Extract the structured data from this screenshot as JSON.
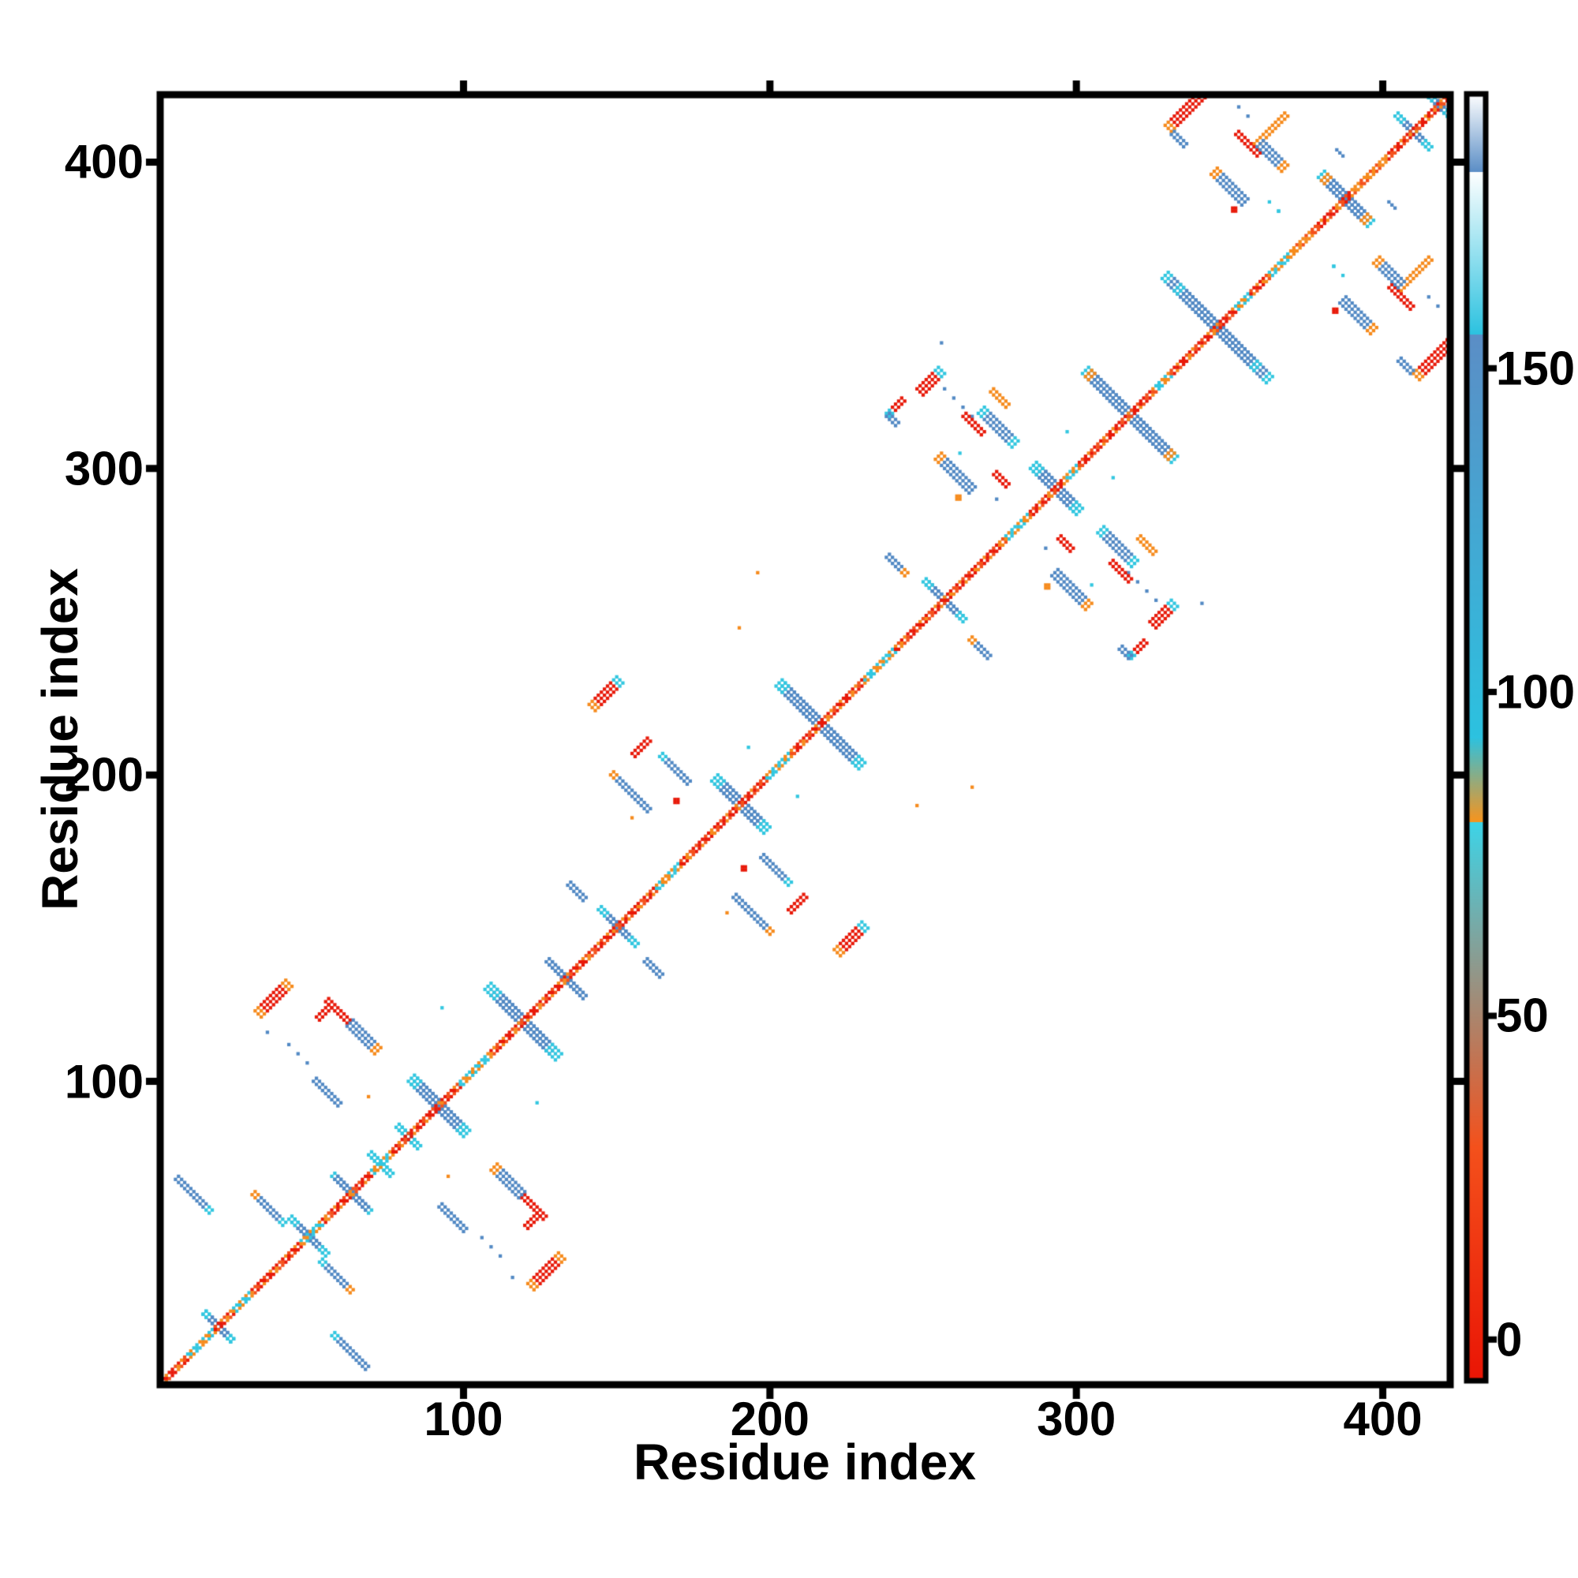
{
  "chart_data": {
    "type": "heatmap",
    "subtype": "protein-residue-contact-map",
    "title": "",
    "xlabel": "Residue index",
    "ylabel": "Residue index",
    "x_range": [
      1,
      422
    ],
    "y_range": [
      1,
      422
    ],
    "x_ticks": [
      100,
      200,
      300,
      400
    ],
    "y_ticks": [
      100,
      200,
      300,
      400
    ],
    "grid": false,
    "symmetric": true,
    "background": "#ffffff",
    "frame_color": "#000000",
    "colors": {
      "red": "#e81a0a",
      "redorange": "#f4511c",
      "orange": "#f68b1d",
      "cyan": "#32c7e0",
      "blue": "#5289c4",
      "white": "#ffffff"
    },
    "colorbar": {
      "ticks": [
        0,
        50,
        100,
        150
      ],
      "tick_labels": [
        "0",
        "50",
        "100",
        "150"
      ],
      "range": [
        -6,
        192
      ],
      "stops": [
        {
          "v": -6,
          "c": "#ea1505"
        },
        {
          "v": 30,
          "c": "#f4511c"
        },
        {
          "v": 80,
          "c": "#f7941e"
        },
        {
          "v": 80,
          "c": "#3dd4e8"
        },
        {
          "v": 93,
          "c": "#2cc2e0"
        },
        {
          "v": 155,
          "c": "#2cc2e0"
        },
        {
          "v": 155,
          "c": "#5b8ec6"
        },
        {
          "v": 180,
          "c": "#5b8ec6"
        },
        {
          "v": 180,
          "c": "#ffffff"
        },
        {
          "v": 192,
          "c": "#ffffff"
        }
      ]
    },
    "diagonal": {
      "start": 1,
      "end": 422,
      "width_residues": 3,
      "cyan_segments": [
        [
          10,
          18
        ],
        [
          25,
          30
        ],
        [
          47,
          53
        ],
        [
          70,
          76
        ],
        [
          99,
          108
        ],
        [
          163,
          170
        ],
        [
          199,
          206
        ],
        [
          231,
          240
        ],
        [
          277,
          284
        ],
        [
          296,
          300
        ],
        [
          326,
          330
        ],
        [
          352,
          356
        ],
        [
          363,
          370
        ]
      ],
      "orange_segments": [
        [
          370,
          377
        ],
        [
          390,
          400
        ]
      ]
    },
    "features": [
      {
        "t": "a",
        "i": 15,
        "j": 24,
        "len": 10,
        "w": 2,
        "c": "blue",
        "tips": "cyan"
      },
      {
        "t": "a",
        "i": 43,
        "j": 55,
        "len": 12,
        "w": 2,
        "c": "blue",
        "tips": "cyan"
      },
      {
        "t": "a",
        "i": 57,
        "j": 69,
        "len": 12,
        "w": 2,
        "c": "blue",
        "tip_start": "cyan"
      },
      {
        "t": "a",
        "i": 69,
        "j": 76,
        "len": 7,
        "w": 2,
        "c": "cyan"
      },
      {
        "t": "a",
        "i": 78,
        "j": 85,
        "len": 7,
        "w": 2,
        "c": "cyan"
      },
      {
        "t": "a",
        "i": 83,
        "j": 101,
        "len": 18,
        "w": 3,
        "c": "blue",
        "tips": "cyan"
      },
      {
        "t": "a",
        "i": 108,
        "j": 131,
        "len": 22,
        "w": 3,
        "c": "blue",
        "tips": "cyan"
      },
      {
        "t": "a",
        "i": 6,
        "j": 68,
        "len": 12,
        "w": 2,
        "c": "blue",
        "tip_end": "cyan"
      },
      {
        "t": "a",
        "i": 31,
        "j": 63,
        "len": 11,
        "w": 2,
        "c": "blue",
        "tip_start": "orange",
        "tip_end": "cyan"
      },
      {
        "t": "p",
        "i": 33,
        "j": 122,
        "len": 11,
        "w": 3,
        "c": "red",
        "tip_start": "orange",
        "tip_end": "orange"
      },
      {
        "t": "p",
        "i": 52,
        "j": 121,
        "len": 5,
        "w": 2,
        "c": "red"
      },
      {
        "t": "a",
        "i": 55,
        "j": 126,
        "len": 8,
        "w": 2,
        "c": "red"
      },
      {
        "t": "a",
        "i": 63,
        "j": 119,
        "len": 10,
        "w": 3,
        "c": "blue",
        "tip_end": "orange"
      },
      {
        "t": "a",
        "i": 51,
        "j": 100,
        "len": 9,
        "w": 2,
        "c": "blue"
      },
      {
        "t": "da",
        "i": 43,
        "j": 112,
        "len": 9,
        "w": 1,
        "c": "blue"
      },
      {
        "t": "d",
        "i": 36,
        "j": 116,
        "c": "blue"
      },
      {
        "t": "d",
        "i": 93,
        "j": 124,
        "c": "cyan"
      },
      {
        "t": "d",
        "i": 69,
        "j": 95,
        "c": "orange"
      },
      {
        "t": "a",
        "i": 127,
        "j": 139,
        "len": 12,
        "w": 2,
        "c": "blue"
      },
      {
        "t": "a",
        "i": 134,
        "j": 164,
        "len": 6,
        "w": 2,
        "c": "blue"
      },
      {
        "t": "a",
        "i": 144,
        "j": 156,
        "len": 12,
        "w": 2,
        "c": "blue",
        "tips": "cyan"
      },
      {
        "t": "a",
        "i": 182,
        "j": 199,
        "len": 17,
        "w": 3,
        "c": "blue",
        "tips": "cyan"
      },
      {
        "t": "a",
        "i": 203,
        "j": 230,
        "len": 27,
        "w": 3,
        "c": "blue",
        "tips": "cyan"
      },
      {
        "t": "p",
        "i": 142,
        "j": 222,
        "len": 10,
        "w": 3,
        "c": "red",
        "tip_start": "orange",
        "tip_end": "cyan"
      },
      {
        "t": "p",
        "i": 155,
        "j": 207,
        "len": 6,
        "w": 2,
        "c": "red"
      },
      {
        "t": "a",
        "i": 164,
        "j": 206,
        "len": 10,
        "w": 2,
        "c": "blue",
        "tip_start": "cyan"
      },
      {
        "t": "a",
        "i": 148,
        "j": 200,
        "len": 13,
        "w": 2,
        "c": "blue",
        "tip_start": "orange"
      },
      {
        "t": "d",
        "i": 169,
        "j": 191,
        "c": "red",
        "big": true
      },
      {
        "t": "d",
        "i": 155,
        "j": 186,
        "c": "orange"
      },
      {
        "t": "d",
        "i": 193,
        "j": 209,
        "c": "cyan"
      },
      {
        "t": "d",
        "i": 190,
        "j": 248,
        "c": "orange"
      },
      {
        "t": "d",
        "i": 196,
        "j": 266,
        "c": "orange"
      },
      {
        "t": "a",
        "i": 250,
        "j": 263,
        "len": 13,
        "w": 2,
        "c": "blue",
        "tips": "cyan"
      },
      {
        "t": "a",
        "i": 286,
        "j": 301,
        "len": 15,
        "w": 3,
        "c": "blue",
        "tips": "cyan"
      },
      {
        "t": "a",
        "i": 303,
        "j": 332,
        "len": 29,
        "w": 3,
        "c": "blue",
        "tips": "cyan",
        "tip_end": "orange"
      },
      {
        "t": "p",
        "i": 249,
        "j": 325,
        "len": 8,
        "w": 3,
        "c": "red",
        "tip_end": "cyan"
      },
      {
        "t": "p",
        "i": 238,
        "j": 318,
        "len": 6,
        "w": 2,
        "c": "red",
        "tip_start": "cyan"
      },
      {
        "t": "a",
        "i": 238,
        "j": 317,
        "len": 4,
        "w": 2,
        "c": "blue"
      },
      {
        "t": "da",
        "i": 257,
        "j": 326,
        "len": 10,
        "w": 1,
        "c": "blue"
      },
      {
        "t": "a",
        "i": 269,
        "j": 319,
        "len": 12,
        "w": 3,
        "c": "blue",
        "tips": "cyan"
      },
      {
        "t": "a",
        "i": 272,
        "j": 325,
        "len": 6,
        "w": 2,
        "c": "orange"
      },
      {
        "t": "a",
        "i": 263,
        "j": 317,
        "len": 7,
        "w": 2,
        "c": "red"
      },
      {
        "t": "a",
        "i": 255,
        "j": 304,
        "len": 12,
        "w": 3,
        "c": "blue",
        "tip_start": "orange"
      },
      {
        "t": "a",
        "i": 238,
        "j": 271,
        "len": 7,
        "w": 2,
        "c": "blue",
        "tip_end": "orange"
      },
      {
        "t": "d",
        "i": 261,
        "j": 290,
        "c": "orange",
        "big": true
      },
      {
        "t": "a",
        "i": 273,
        "j": 298,
        "len": 5,
        "w": 2,
        "c": "red"
      },
      {
        "t": "d",
        "i": 297,
        "j": 312,
        "c": "cyan"
      },
      {
        "t": "d",
        "i": 262,
        "j": 305,
        "c": "cyan"
      },
      {
        "t": "d",
        "i": 256,
        "j": 341,
        "c": "blue"
      },
      {
        "t": "d",
        "i": 274,
        "j": 290,
        "c": "blue"
      },
      {
        "t": "a",
        "i": 329,
        "j": 363,
        "len": 31,
        "w": 3,
        "c": "blue",
        "tips": "cyan"
      },
      {
        "t": "p",
        "i": 330,
        "j": 411,
        "len": 13,
        "w": 3,
        "c": "red",
        "tip_start": "orange"
      },
      {
        "t": "a",
        "i": 331,
        "j": 409,
        "len": 5,
        "w": 2,
        "c": "blue"
      },
      {
        "t": "p",
        "i": 358,
        "j": 406,
        "len": 11,
        "w": 2,
        "c": "orange"
      },
      {
        "t": "a",
        "i": 352,
        "j": 409,
        "len": 8,
        "w": 2,
        "c": "red"
      },
      {
        "t": "a",
        "i": 360,
        "j": 406,
        "len": 9,
        "w": 3,
        "c": "blue",
        "tip_end": "orange"
      },
      {
        "t": "a",
        "i": 345,
        "j": 397,
        "len": 11,
        "w": 3,
        "c": "blue",
        "tip_start": "orange"
      },
      {
        "t": "d",
        "i": 351,
        "j": 384,
        "c": "red",
        "big": true
      },
      {
        "t": "da",
        "i": 353,
        "j": 418,
        "len": 6,
        "w": 1,
        "c": "blue"
      },
      {
        "t": "da",
        "i": 363,
        "j": 387,
        "len": 4,
        "w": 1,
        "c": "cyan"
      },
      {
        "t": "a",
        "i": 380,
        "j": 396,
        "len": 16,
        "w": 3,
        "c": "blue",
        "tips": "cyan",
        "tip_end": "orange"
      },
      {
        "t": "a",
        "i": 404,
        "j": 415,
        "len": 11,
        "w": 2,
        "c": "blue",
        "tips": "cyan"
      },
      {
        "t": "a",
        "i": 414,
        "j": 422,
        "len": 8,
        "w": 2,
        "c": "blue",
        "tips": "cyan"
      },
      {
        "t": "d",
        "i": 366,
        "j": 384,
        "c": "cyan"
      },
      {
        "t": "a",
        "i": 385,
        "j": 404,
        "len": 3,
        "w": 1,
        "c": "blue"
      }
    ]
  }
}
